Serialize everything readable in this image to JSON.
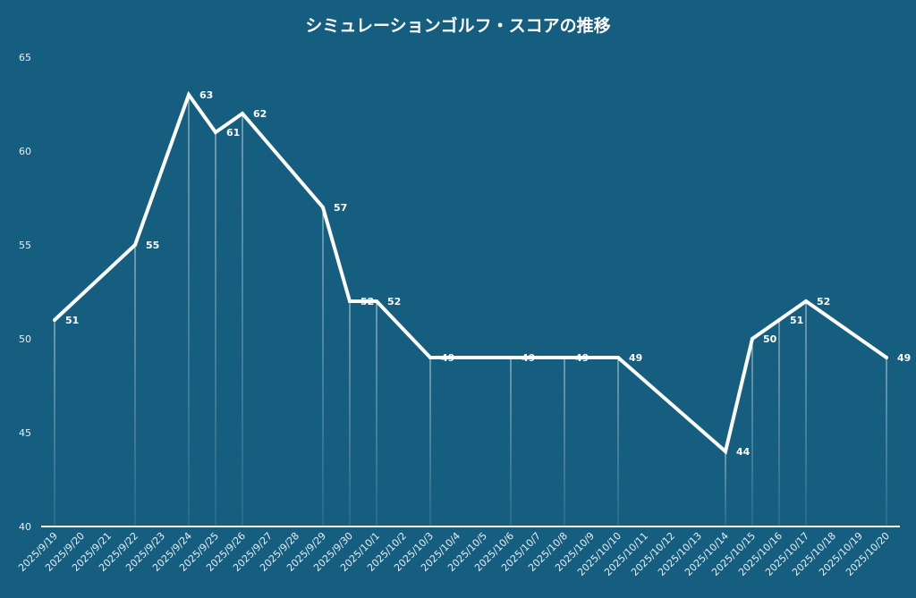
{
  "chart_data": {
    "type": "line",
    "title": "シミュレーションゴルフ・スコアの推移",
    "xlabel": "",
    "ylabel": "",
    "ylim": [
      40,
      65
    ],
    "yticks": [
      40,
      45,
      50,
      55,
      60,
      65
    ],
    "grid": false,
    "categories": [
      "2025/9/19",
      "2025/9/20",
      "2025/9/21",
      "2025/9/22",
      "2025/9/23",
      "2025/9/24",
      "2025/9/25",
      "2025/9/26",
      "2025/9/27",
      "2025/9/28",
      "2025/9/29",
      "2025/9/30",
      "2025/10/1",
      "2025/10/2",
      "2025/10/3",
      "2025/10/4",
      "2025/10/5",
      "2025/10/6",
      "2025/10/7",
      "2025/10/8",
      "2025/10/9",
      "2025/10/10",
      "2025/10/11",
      "2025/10/12",
      "2025/10/13",
      "2025/10/14",
      "2025/10/15",
      "2025/10/16",
      "2025/10/17",
      "2025/10/18",
      "2025/10/19",
      "2025/10/20"
    ],
    "series": [
      {
        "points": [
          {
            "x": "2025/9/19",
            "y": 51
          },
          {
            "x": "2025/9/22",
            "y": 55
          },
          {
            "x": "2025/9/24",
            "y": 63
          },
          {
            "x": "2025/9/25",
            "y": 61
          },
          {
            "x": "2025/9/26",
            "y": 62
          },
          {
            "x": "2025/9/29",
            "y": 57
          },
          {
            "x": "2025/9/30",
            "y": 52
          },
          {
            "x": "2025/10/1",
            "y": 52
          },
          {
            "x": "2025/10/3",
            "y": 49
          },
          {
            "x": "2025/10/6",
            "y": 49
          },
          {
            "x": "2025/10/8",
            "y": 49
          },
          {
            "x": "2025/10/10",
            "y": 49
          },
          {
            "x": "2025/10/14",
            "y": 44
          },
          {
            "x": "2025/10/15",
            "y": 50
          },
          {
            "x": "2025/10/16",
            "y": 51
          },
          {
            "x": "2025/10/17",
            "y": 52
          },
          {
            "x": "2025/10/20",
            "y": 49
          }
        ]
      }
    ],
    "colors": {
      "background": "#165e80",
      "line": "#ffffff",
      "text": "#e8eef2"
    }
  }
}
